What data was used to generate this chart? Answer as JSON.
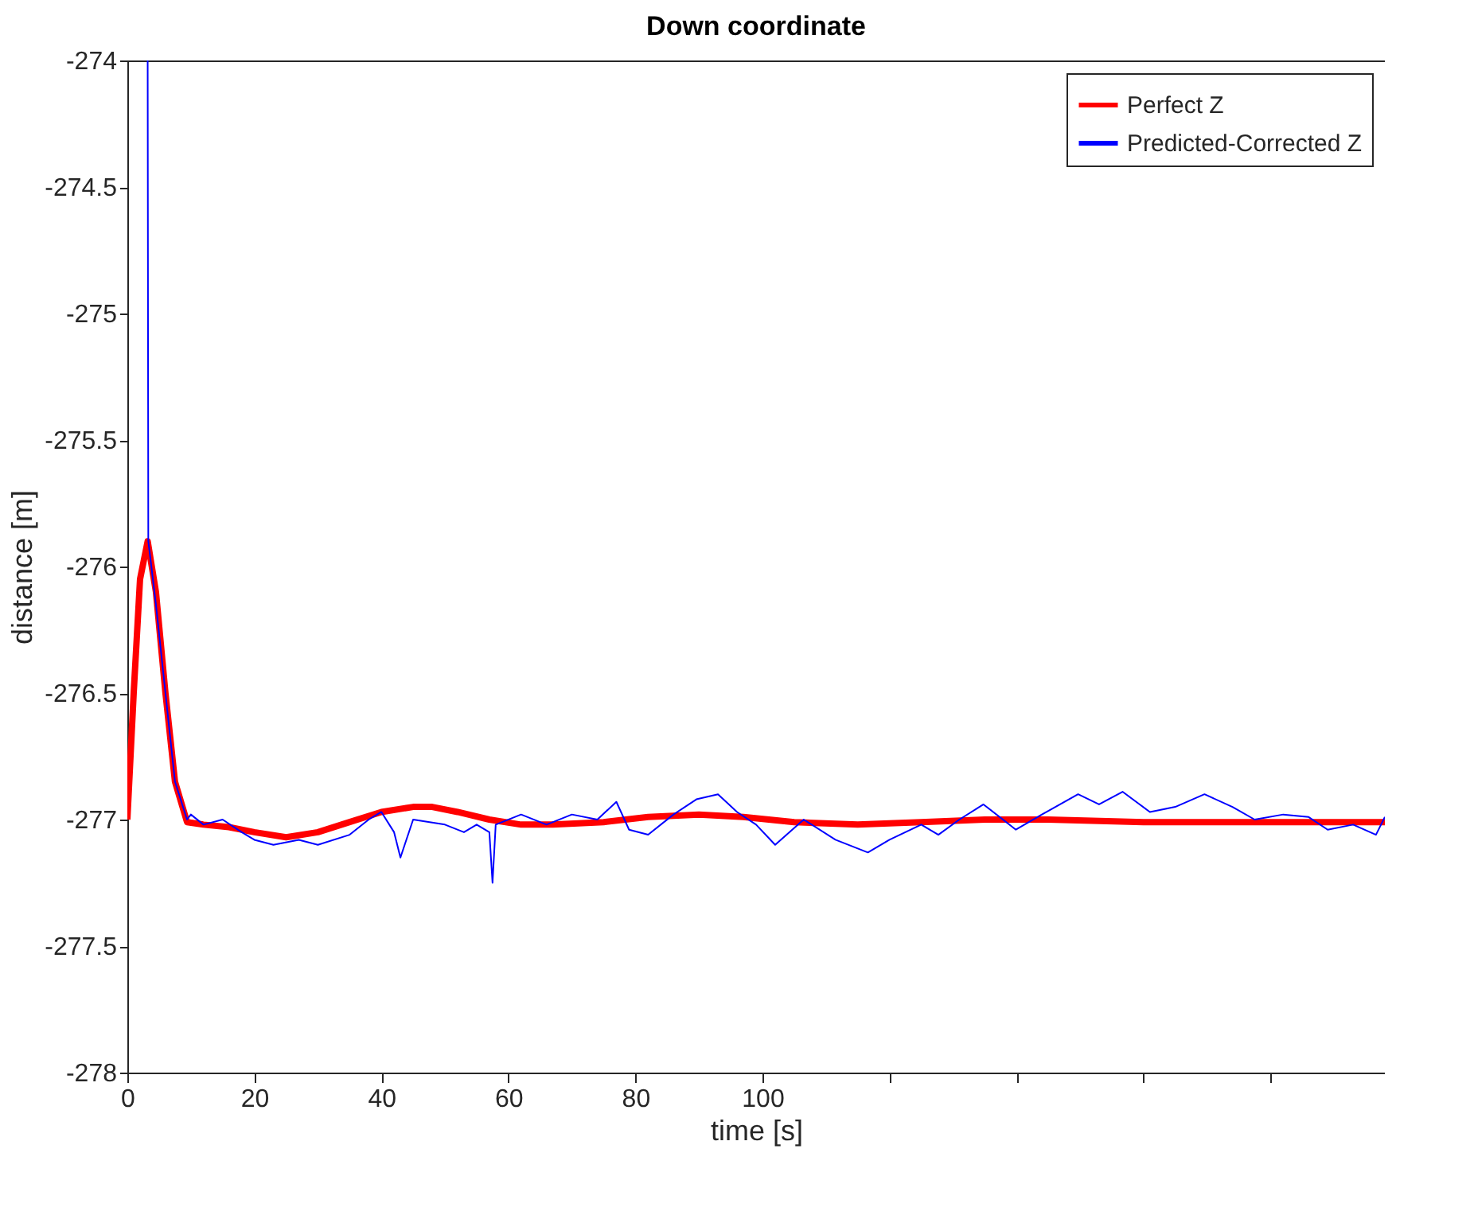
{
  "chart_data": {
    "type": "line",
    "title": "Down coordinate",
    "xlabel": "time [s]",
    "ylabel": "distance [m]",
    "xlim": [
      0,
      198
    ],
    "xticks": [
      0,
      20,
      40,
      60,
      80,
      100,
      {
        "value": 120,
        "label": null
      },
      {
        "value": 140,
        "label": null
      },
      {
        "value": 160,
        "label": null
      },
      {
        "value": 180,
        "label": null
      }
    ],
    "ylim": [
      -278,
      -274
    ],
    "yticks": [
      -278,
      -277.5,
      -277,
      -276.5,
      -276,
      -275.5,
      -275,
      -274.5,
      -274
    ],
    "grid": false,
    "legend": "top right",
    "marker": "none",
    "line_style": "solid",
    "series": [
      {
        "name": "Perfect Z",
        "color": "#ff0000",
        "x": [
          0,
          1,
          2,
          3.2,
          4.5,
          6,
          7.5,
          9.4,
          12,
          16,
          20,
          25,
          30,
          35,
          40,
          45,
          48,
          52,
          57,
          62,
          67,
          75,
          82,
          90,
          97,
          105,
          115,
          125,
          135,
          145,
          160,
          175,
          190,
          198
        ],
        "values": [
          -277,
          -276.5,
          -276.05,
          -275.9,
          -276.1,
          -276.5,
          -276.85,
          -277.01,
          -277.02,
          -277.03,
          -277.05,
          -277.07,
          -277.05,
          -277.01,
          -276.97,
          -276.95,
          -276.95,
          -276.97,
          -277,
          -277.02,
          -277.02,
          -277.01,
          -276.99,
          -276.98,
          -276.99,
          -277.01,
          -277.02,
          -277.01,
          -277.0,
          -277.0,
          -277.01,
          -277.01,
          -277.01,
          -277.01
        ]
      },
      {
        "name": "Predicted-Corrected Z",
        "color": "#0000ff",
        "x": [
          3.2,
          3.3,
          4.5,
          6,
          7.5,
          9.4,
          10,
          12,
          15,
          18,
          20,
          23,
          27,
          30,
          35,
          38,
          40,
          42,
          43,
          45,
          50,
          53,
          55,
          57,
          57.5,
          58,
          62,
          66,
          70,
          74,
          77,
          79,
          82,
          86,
          89.6,
          93,
          96,
          99,
          102,
          106.5,
          111.5,
          116.6,
          120,
          125,
          127.7,
          131,
          134.8,
          139.9,
          144,
          149.7,
          153,
          156.7,
          161,
          165,
          169.6,
          174,
          177.5,
          182,
          186,
          189,
          193,
          196.6,
          198
        ],
        "values": [
          -274,
          -275.9,
          -276.15,
          -276.5,
          -276.85,
          -277,
          -276.98,
          -277.02,
          -277,
          -277.05,
          -277.08,
          -277.1,
          -277.08,
          -277.1,
          -277.06,
          -277.0,
          -276.97,
          -277.05,
          -277.15,
          -277.0,
          -277.02,
          -277.05,
          -277.02,
          -277.05,
          -277.25,
          -277.02,
          -276.98,
          -277.02,
          -276.98,
          -277.0,
          -276.93,
          -277.04,
          -277.06,
          -276.98,
          -276.92,
          -276.9,
          -276.97,
          -277.02,
          -277.1,
          -277.0,
          -277.08,
          -277.13,
          -277.08,
          -277.02,
          -277.06,
          -277.0,
          -276.94,
          -277.04,
          -276.98,
          -276.9,
          -276.94,
          -276.89,
          -276.97,
          -276.95,
          -276.9,
          -276.95,
          -277.0,
          -276.98,
          -276.99,
          -277.04,
          -277.02,
          -277.06,
          -276.99
        ]
      }
    ]
  }
}
